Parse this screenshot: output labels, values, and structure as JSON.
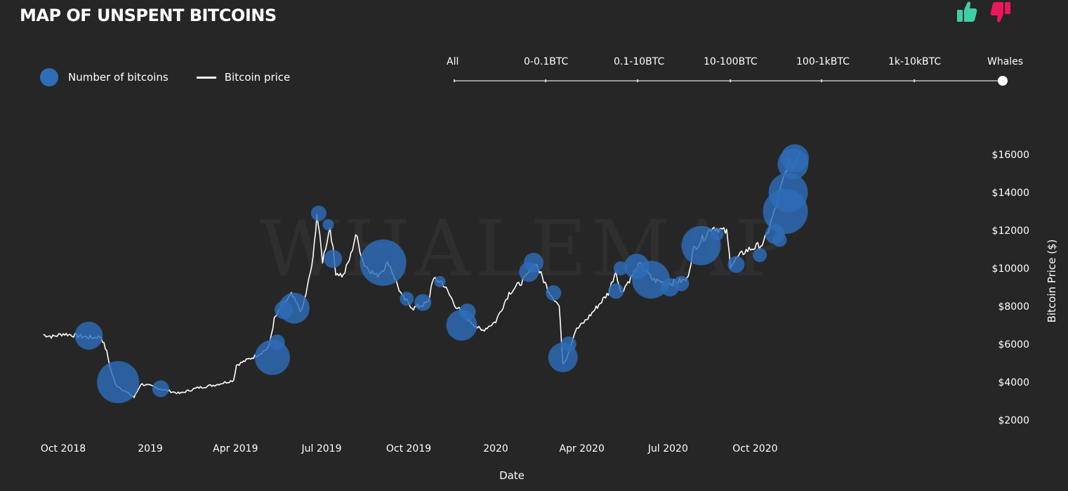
{
  "header": {
    "title": "MAP OF UNSPENT BITCOINS"
  },
  "votes": {
    "up_icon": "thumbs-up-icon",
    "down_icon": "thumbs-down-icon",
    "up_color": "#3ecfa6",
    "down_color": "#e8195a"
  },
  "legend": [
    {
      "label": "Number of bitcoins",
      "marker": "circle",
      "color": "#2e6db8"
    },
    {
      "label": "Bitcoin price",
      "marker": "line",
      "color": "#ffffff"
    }
  ],
  "filter": {
    "options": [
      "All",
      "0-0.1BTC",
      "0.1-10BTC",
      "10-100BTC",
      "100-1kBTC",
      "1k-10kBTC",
      "Whales"
    ],
    "selected": "Whales"
  },
  "watermark": "WHALEMAP",
  "chart_data": {
    "type": "scatter",
    "xlabel": "Date",
    "ylabel": "Bitcoin Price ($)",
    "x_ticks": [
      "Oct 2018",
      "2019",
      "Apr 2019",
      "Jul 2019",
      "Oct 2019",
      "2020",
      "Apr 2020",
      "Jul 2020",
      "Oct 2020"
    ],
    "x_tick_dates": [
      "2018-10-01",
      "2019-01-01",
      "2019-04-01",
      "2019-07-01",
      "2019-10-01",
      "2020-01-01",
      "2020-04-01",
      "2020-07-01",
      "2020-10-01"
    ],
    "y_ticks": [
      "$2000",
      "$4000",
      "$6000",
      "$8000",
      "$10000",
      "$12000",
      "$14000",
      "$16000"
    ],
    "ylim": [
      2000,
      16000
    ],
    "y_scale": "linear",
    "legend_position": "top-left",
    "grid": false,
    "series": [
      {
        "name": "Bitcoin price",
        "kind": "line",
        "color": "#ffffff",
        "points": [
          [
            "2018-09-10",
            6500
          ],
          [
            "2018-09-20",
            6400
          ],
          [
            "2018-10-01",
            6550
          ],
          [
            "2018-10-15",
            6450
          ],
          [
            "2018-10-31",
            6350
          ],
          [
            "2018-11-10",
            6400
          ],
          [
            "2018-11-16",
            5600
          ],
          [
            "2018-11-20",
            4700
          ],
          [
            "2018-11-25",
            3900
          ],
          [
            "2018-12-06",
            3500
          ],
          [
            "2018-12-15",
            3200
          ],
          [
            "2018-12-22",
            3900
          ],
          [
            "2019-01-01",
            3800
          ],
          [
            "2019-01-15",
            3600
          ],
          [
            "2019-02-01",
            3400
          ],
          [
            "2019-02-20",
            3700
          ],
          [
            "2019-03-10",
            3850
          ],
          [
            "2019-03-30",
            4100
          ],
          [
            "2019-04-02",
            4900
          ],
          [
            "2019-04-23",
            5400
          ],
          [
            "2019-05-06",
            5800
          ],
          [
            "2019-05-12",
            7300
          ],
          [
            "2019-05-20",
            8000
          ],
          [
            "2019-05-30",
            8600
          ],
          [
            "2019-06-10",
            7700
          ],
          [
            "2019-06-16",
            9000
          ],
          [
            "2019-06-22",
            10500
          ],
          [
            "2019-06-26",
            12900
          ],
          [
            "2019-07-02",
            10400
          ],
          [
            "2019-07-10",
            12200
          ],
          [
            "2019-07-16",
            9800
          ],
          [
            "2019-07-24",
            9600
          ],
          [
            "2019-08-01",
            10700
          ],
          [
            "2019-08-06",
            11800
          ],
          [
            "2019-08-15",
            10200
          ],
          [
            "2019-08-28",
            9600
          ],
          [
            "2019-09-10",
            10300
          ],
          [
            "2019-09-24",
            8500
          ],
          [
            "2019-10-06",
            7900
          ],
          [
            "2019-10-22",
            8200
          ],
          [
            "2019-10-26",
            9400
          ],
          [
            "2019-11-05",
            9300
          ],
          [
            "2019-11-20",
            8000
          ],
          [
            "2019-12-01",
            7400
          ],
          [
            "2019-12-17",
            6700
          ],
          [
            "2020-01-01",
            7200
          ],
          [
            "2020-01-15",
            8700
          ],
          [
            "2020-01-31",
            9400
          ],
          [
            "2020-02-12",
            10300
          ],
          [
            "2020-02-25",
            8900
          ],
          [
            "2020-03-08",
            8000
          ],
          [
            "2020-03-12",
            5000
          ],
          [
            "2020-03-16",
            5300
          ],
          [
            "2020-03-25",
            6700
          ],
          [
            "2020-04-06",
            7300
          ],
          [
            "2020-04-29",
            8700
          ],
          [
            "2020-05-07",
            9900
          ],
          [
            "2020-05-12",
            8700
          ],
          [
            "2020-06-01",
            10200
          ],
          [
            "2020-06-15",
            9400
          ],
          [
            "2020-07-01",
            9200
          ],
          [
            "2020-07-21",
            9400
          ],
          [
            "2020-07-28",
            11000
          ],
          [
            "2020-08-17",
            12200
          ],
          [
            "2020-09-01",
            11900
          ],
          [
            "2020-09-05",
            10200
          ],
          [
            "2020-09-20",
            10900
          ],
          [
            "2020-10-10",
            11300
          ],
          [
            "2020-10-21",
            12900
          ],
          [
            "2020-11-05",
            15600
          ],
          [
            "2020-11-10",
            15300
          ],
          [
            "2020-11-17",
            16200
          ]
        ]
      },
      {
        "name": "Number of bitcoins",
        "kind": "bubble",
        "color": "#2e6db8",
        "points": [
          [
            "2018-10-28",
            6450,
            20
          ],
          [
            "2018-11-28",
            4000,
            30
          ],
          [
            "2019-01-12",
            3650,
            12
          ],
          [
            "2019-05-10",
            5300,
            25
          ],
          [
            "2019-05-15",
            6100,
            11
          ],
          [
            "2019-05-22",
            7800,
            13
          ],
          [
            "2019-06-02",
            7900,
            22
          ],
          [
            "2019-06-28",
            12900,
            11
          ],
          [
            "2019-07-08",
            12300,
            8
          ],
          [
            "2019-07-13",
            10500,
            13
          ],
          [
            "2019-09-04",
            10300,
            33
          ],
          [
            "2019-09-29",
            8400,
            10
          ],
          [
            "2019-10-16",
            8200,
            12
          ],
          [
            "2019-11-03",
            9300,
            8
          ],
          [
            "2019-11-26",
            7000,
            22
          ],
          [
            "2019-12-02",
            7700,
            12
          ],
          [
            "2020-02-05",
            9800,
            14
          ],
          [
            "2020-02-10",
            10300,
            14
          ],
          [
            "2020-03-02",
            8700,
            11
          ],
          [
            "2020-03-12",
            5300,
            21
          ],
          [
            "2020-03-18",
            6000,
            11
          ],
          [
            "2020-05-07",
            8800,
            11
          ],
          [
            "2020-05-12",
            10000,
            10
          ],
          [
            "2020-05-29",
            10100,
            18
          ],
          [
            "2020-06-13",
            9400,
            27
          ],
          [
            "2020-07-03",
            9000,
            13
          ],
          [
            "2020-07-15",
            9200,
            11
          ],
          [
            "2020-08-05",
            11200,
            28
          ],
          [
            "2020-08-22",
            11800,
            9
          ],
          [
            "2020-09-11",
            10200,
            12
          ],
          [
            "2020-10-06",
            10700,
            10
          ],
          [
            "2020-10-22",
            11800,
            14
          ],
          [
            "2020-10-27",
            11500,
            10
          ],
          [
            "2020-11-02",
            13000,
            32
          ],
          [
            "2020-11-05",
            14000,
            28
          ],
          [
            "2020-11-10",
            15500,
            22
          ],
          [
            "2020-11-12",
            15800,
            20
          ]
        ]
      }
    ]
  }
}
